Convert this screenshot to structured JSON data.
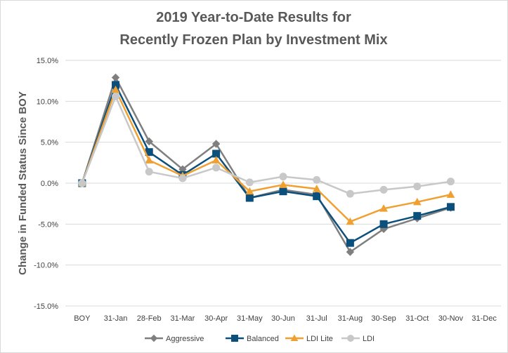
{
  "chart_data": {
    "type": "line",
    "title": "2019 Year-to-Date Results for",
    "subtitle": "Recently Frozen Plan by Investment Mix",
    "xlabel": "",
    "ylabel": "Change in Funded Status Since BOY",
    "categories": [
      "BOY",
      "31-Jan",
      "28-Feb",
      "31-Mar",
      "30-Apr",
      "31-May",
      "30-Jun",
      "31-Jul",
      "31-Aug",
      "30-Sep",
      "31-Oct",
      "30-Nov",
      "31-Dec"
    ],
    "ylim": [
      -15,
      15
    ],
    "yticks": [
      15,
      10,
      5,
      0,
      -5,
      -10,
      -15
    ],
    "ytick_labels": [
      "15.0%",
      "10.0%",
      "5.0%",
      "0.0%",
      "-5.0%",
      "-10.0%",
      "-15.0%"
    ],
    "grid": true,
    "legend_position": "bottom",
    "series": [
      {
        "name": "Aggressive",
        "color": "#7f7f7f",
        "marker": "diamond",
        "values": [
          0.0,
          12.9,
          5.1,
          1.7,
          4.8,
          -1.8,
          -0.8,
          -1.4,
          -8.4,
          -5.6,
          -4.3,
          -3.0,
          null
        ]
      },
      {
        "name": "Balanced",
        "color": "#0b4f7c",
        "marker": "square",
        "values": [
          0.0,
          12.0,
          3.8,
          1.0,
          3.6,
          -1.8,
          -1.0,
          -1.6,
          -7.3,
          -5.0,
          -4.0,
          -2.9,
          null
        ]
      },
      {
        "name": "LDI Lite",
        "color": "#f0a030",
        "marker": "triangle",
        "values": [
          0.0,
          11.4,
          2.8,
          0.9,
          2.8,
          -1.0,
          -0.2,
          -0.7,
          -4.7,
          -3.1,
          -2.3,
          -1.4,
          null
        ]
      },
      {
        "name": "LDI",
        "color": "#c8c8c8",
        "marker": "circle",
        "values": [
          0.0,
          10.6,
          1.4,
          0.6,
          1.9,
          0.1,
          0.8,
          0.4,
          -1.3,
          -0.8,
          -0.4,
          0.2,
          null
        ]
      }
    ]
  }
}
